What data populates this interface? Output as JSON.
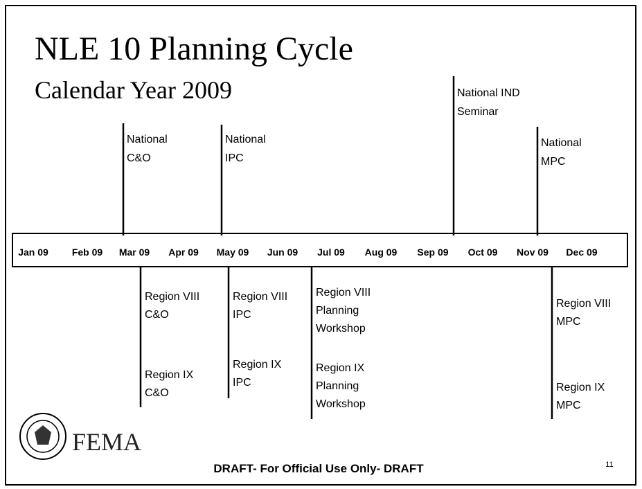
{
  "header": {
    "title": "NLE 10 Planning Cycle",
    "subtitle": "Calendar Year 2009"
  },
  "timeline": {
    "months": [
      "Jan 09",
      "Feb 09",
      "Mar 09",
      "Apr 09",
      "May 09",
      "Jun 09",
      "Jul 09",
      "Aug 09",
      "Sep 09",
      "Oct 09",
      "Nov 09",
      "Dec 09"
    ],
    "above": [
      {
        "lines": [
          "National",
          "C&O"
        ]
      },
      {
        "lines": [
          "National",
          "IPC"
        ]
      },
      {
        "lines": [
          "National IND",
          "Seminar"
        ]
      },
      {
        "lines": [
          "National",
          "MPC"
        ]
      }
    ],
    "below": [
      {
        "groups": [
          [
            "Region VIII",
            "C&O"
          ],
          [
            "Region IX",
            "C&O"
          ]
        ]
      },
      {
        "groups": [
          [
            "Region VIII",
            "IPC"
          ],
          [
            "Region IX",
            "IPC"
          ]
        ]
      },
      {
        "groups": [
          [
            "Region VIII",
            "Planning",
            "Workshop"
          ],
          [
            "Region IX",
            "Planning",
            "Workshop"
          ]
        ]
      },
      {
        "groups": [
          [
            "Region VIII",
            "MPC"
          ],
          [
            "Region IX",
            "MPC"
          ]
        ]
      }
    ]
  },
  "footer": {
    "logo": "FEMA",
    "notice": "DRAFT- For Official Use Only- DRAFT",
    "page": "11"
  }
}
